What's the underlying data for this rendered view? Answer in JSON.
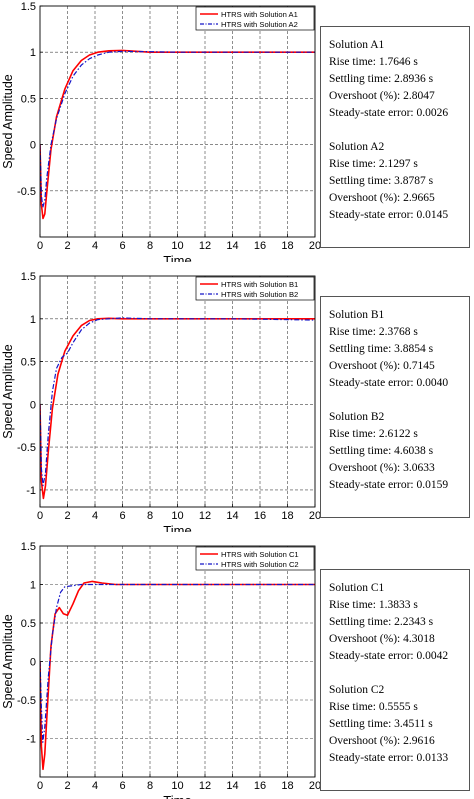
{
  "colors": {
    "series_solid": "#ff0000",
    "series_dashdot": "#1414c8",
    "grid": "#444444",
    "axis": "#000000"
  },
  "chart_data": [
    {
      "type": "line",
      "xlabel": "Time",
      "ylabel": "Speed Amplitude",
      "xlim": [
        0,
        20
      ],
      "ylim": [
        -1,
        1.5
      ],
      "xticks": [
        "0",
        "2",
        "4",
        "6",
        "8",
        "10",
        "12",
        "14",
        "16",
        "18",
        "20"
      ],
      "yticks": [
        "-0.5",
        "0",
        "0.5",
        "1",
        "1.5"
      ],
      "grid": true,
      "legend_position": "top-right",
      "series": [
        {
          "name": "HTRS with Solution A1",
          "style": "solid",
          "color": "#ff0000",
          "points": [
            [
              0,
              0
            ],
            [
              0.1,
              -0.65
            ],
            [
              0.22,
              -0.8
            ],
            [
              0.35,
              -0.75
            ],
            [
              0.5,
              -0.5
            ],
            [
              0.8,
              -0.05
            ],
            [
              1.2,
              0.3
            ],
            [
              1.8,
              0.6
            ],
            [
              2.4,
              0.8
            ],
            [
              3.0,
              0.91
            ],
            [
              3.6,
              0.97
            ],
            [
              4.2,
              1.0
            ],
            [
              5.0,
              1.015
            ],
            [
              6.0,
              1.02
            ],
            [
              7.0,
              1.01
            ],
            [
              8.0,
              1.0
            ],
            [
              10,
              1.0
            ],
            [
              12,
              1.0
            ],
            [
              14,
              1.0
            ],
            [
              16,
              1.0
            ],
            [
              18,
              1.0
            ],
            [
              20,
              1.0
            ]
          ]
        },
        {
          "name": "HTRS with Solution A2",
          "style": "dashdot",
          "color": "#1414c8",
          "points": [
            [
              0,
              0
            ],
            [
              0.1,
              -0.55
            ],
            [
              0.2,
              -0.68
            ],
            [
              0.35,
              -0.6
            ],
            [
              0.5,
              -0.35
            ],
            [
              0.8,
              0.0
            ],
            [
              1.2,
              0.28
            ],
            [
              1.8,
              0.55
            ],
            [
              2.4,
              0.74
            ],
            [
              3.0,
              0.86
            ],
            [
              3.6,
              0.93
            ],
            [
              4.2,
              0.97
            ],
            [
              5.0,
              1.0
            ],
            [
              6.0,
              1.01
            ],
            [
              8.0,
              1.005
            ],
            [
              10,
              1.0
            ],
            [
              12,
              1.0
            ],
            [
              14,
              1.0
            ],
            [
              16,
              1.0
            ],
            [
              18,
              1.0
            ],
            [
              20,
              1.0
            ]
          ]
        }
      ]
    },
    {
      "type": "line",
      "xlabel": "Time",
      "ylabel": "Speed Amplitude",
      "xlim": [
        0,
        20
      ],
      "ylim": [
        -1.2,
        1.5
      ],
      "xticks": [
        "0",
        "2",
        "4",
        "6",
        "8",
        "10",
        "12",
        "14",
        "16",
        "18",
        "20"
      ],
      "yticks": [
        "-1",
        "-0.5",
        "0",
        "0.5",
        "1",
        "1.5"
      ],
      "grid": true,
      "legend_position": "top-right",
      "series": [
        {
          "name": "HTRS with Solution B1",
          "style": "solid",
          "color": "#ff0000",
          "points": [
            [
              0,
              0
            ],
            [
              0.1,
              -0.9
            ],
            [
              0.25,
              -1.1
            ],
            [
              0.4,
              -0.95
            ],
            [
              0.6,
              -0.55
            ],
            [
              0.9,
              -0.05
            ],
            [
              1.3,
              0.35
            ],
            [
              1.8,
              0.62
            ],
            [
              2.4,
              0.8
            ],
            [
              3.0,
              0.92
            ],
            [
              3.6,
              0.98
            ],
            [
              4.2,
              1.0
            ],
            [
              5.0,
              1.005
            ],
            [
              6.0,
              1.0
            ],
            [
              8.0,
              1.0
            ],
            [
              10,
              1.0
            ],
            [
              12,
              1.0
            ],
            [
              14,
              1.0
            ],
            [
              16,
              1.0
            ],
            [
              18,
              1.0
            ],
            [
              20,
              1.0
            ]
          ]
        },
        {
          "name": "HTRS with Solution B2",
          "style": "dashdot",
          "color": "#1414c8",
          "points": [
            [
              0,
              0
            ],
            [
              0.1,
              -0.75
            ],
            [
              0.22,
              -0.95
            ],
            [
              0.4,
              -0.8
            ],
            [
              0.6,
              -0.35
            ],
            [
              0.9,
              0.15
            ],
            [
              1.2,
              0.42
            ],
            [
              1.6,
              0.55
            ],
            [
              2.0,
              0.6
            ],
            [
              2.4,
              0.72
            ],
            [
              3.0,
              0.87
            ],
            [
              3.6,
              0.95
            ],
            [
              4.2,
              0.99
            ],
            [
              5.0,
              1.0
            ],
            [
              6.0,
              1.01
            ],
            [
              8.0,
              1.0
            ],
            [
              10,
              1.0
            ],
            [
              14,
              1.0
            ],
            [
              18,
              0.99
            ],
            [
              20,
              0.985
            ]
          ]
        }
      ]
    },
    {
      "type": "line",
      "xlabel": "Time",
      "ylabel": "Speed Amplitude",
      "xlim": [
        0,
        20
      ],
      "ylim": [
        -1.5,
        1.5
      ],
      "xticks": [
        "0",
        "2",
        "4",
        "6",
        "8",
        "10",
        "12",
        "14",
        "16",
        "18",
        "20"
      ],
      "yticks": [
        "-1",
        "-0.5",
        "0",
        "0.5",
        "1",
        "1.5"
      ],
      "grid": true,
      "legend_position": "top-right",
      "series": [
        {
          "name": "HTRS with Solution C1",
          "style": "solid",
          "color": "#ff0000",
          "points": [
            [
              0,
              0
            ],
            [
              0.1,
              -1.1
            ],
            [
              0.22,
              -1.4
            ],
            [
              0.35,
              -1.2
            ],
            [
              0.55,
              -0.55
            ],
            [
              0.8,
              0.2
            ],
            [
              1.1,
              0.62
            ],
            [
              1.4,
              0.7
            ],
            [
              1.7,
              0.62
            ],
            [
              2.0,
              0.6
            ],
            [
              2.4,
              0.75
            ],
            [
              2.8,
              0.92
            ],
            [
              3.2,
              1.02
            ],
            [
              3.8,
              1.04
            ],
            [
              4.5,
              1.02
            ],
            [
              5.5,
              1.0
            ],
            [
              7.0,
              1.0
            ],
            [
              10,
              1.0
            ],
            [
              14,
              1.0
            ],
            [
              18,
              1.0
            ],
            [
              20,
              1.0
            ]
          ]
        },
        {
          "name": "HTRS with Solution C2",
          "style": "dashdot",
          "color": "#1414c8",
          "points": [
            [
              0,
              0
            ],
            [
              0.1,
              -0.6
            ],
            [
              0.2,
              -1.05
            ],
            [
              0.35,
              -0.85
            ],
            [
              0.6,
              -0.2
            ],
            [
              0.9,
              0.35
            ],
            [
              1.2,
              0.7
            ],
            [
              1.5,
              0.9
            ],
            [
              1.8,
              0.97
            ],
            [
              2.2,
              0.98
            ],
            [
              3.0,
              1.0
            ],
            [
              4.0,
              1.0
            ],
            [
              6.0,
              1.0
            ],
            [
              10,
              1.0
            ],
            [
              14,
              1.0
            ],
            [
              18,
              1.0
            ],
            [
              20,
              1.0
            ]
          ]
        }
      ]
    }
  ],
  "info_panels": [
    {
      "groups": [
        {
          "title": "Solution A1",
          "lines": [
            "Rise time: 1.7646 s",
            "Settling time: 2.8936 s",
            "Overshoot (%): 2.8047",
            "Steady-state error: 0.0026"
          ]
        },
        {
          "title": "Solution A2",
          "lines": [
            "Rise time: 2.1297 s",
            "Settling time: 3.8787 s",
            "Overshoot (%): 2.9665",
            "Steady-state error: 0.0145"
          ]
        }
      ]
    },
    {
      "groups": [
        {
          "title": "Solution B1",
          "lines": [
            "Rise time: 2.3768 s",
            "Settling time: 3.8854 s",
            "Overshoot (%): 0.7145",
            "Steady-state error: 0.0040"
          ]
        },
        {
          "title": "Solution B2",
          "lines": [
            "Rise time: 2.6122 s",
            "Settling time: 4.6038 s",
            "Overshoot (%): 3.0633",
            "Steady-state error: 0.0159"
          ]
        }
      ]
    },
    {
      "groups": [
        {
          "title": "Solution C1",
          "lines": [
            "Rise time: 1.3833 s",
            "Settling time: 2.2343 s",
            "Overshoot (%): 4.3018",
            "Steady-state error: 0.0042"
          ]
        },
        {
          "title": "Solution C2",
          "lines": [
            "Rise time: 0.5555 s",
            "Settling time: 3.4511 s",
            "Overshoot (%): 2.9616",
            "Steady-state error: 0.0133"
          ]
        }
      ]
    }
  ]
}
